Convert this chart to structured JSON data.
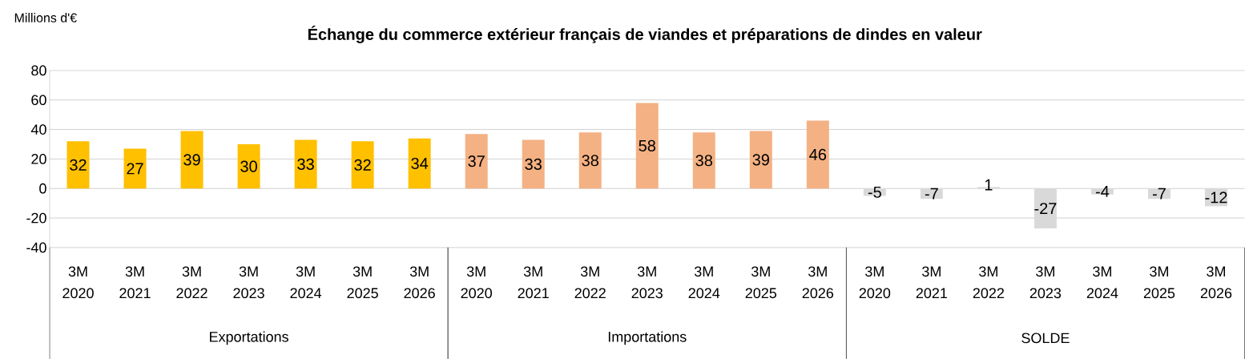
{
  "chart_data": {
    "type": "bar",
    "title": "Échange du commerce extérieur français de viandes et préparations de dindes en valeur",
    "ylabel": "Millions d'€",
    "categories": [
      "3M 2020",
      "3M 2021",
      "3M 2022",
      "3M 2023",
      "3M 2024",
      "3M 2025",
      "3M 2026",
      "3M 2020",
      "3M 2021",
      "3M 2022",
      "3M 2023",
      "3M 2024",
      "3M 2025",
      "3M 2026",
      "3M 2020",
      "3M 2021",
      "3M 2022",
      "3M 2023",
      "3M 2024",
      "3M 2025",
      "3M 2026"
    ],
    "series": [
      {
        "color": "#ffc000",
        "values": [
          32,
          27,
          39,
          30,
          33,
          32,
          34,
          null,
          null,
          null,
          null,
          null,
          null,
          null,
          null,
          null,
          null,
          null,
          null,
          null,
          null
        ]
      },
      {
        "color": "#f4b183",
        "values": [
          null,
          null,
          null,
          null,
          null,
          null,
          null,
          37,
          33,
          38,
          58,
          38,
          39,
          46,
          null,
          null,
          null,
          null,
          null,
          null,
          null
        ]
      },
      {
        "color": "#d9d9d9",
        "values": [
          null,
          null,
          null,
          null,
          null,
          null,
          null,
          null,
          null,
          null,
          null,
          null,
          null,
          null,
          -5,
          -7,
          1,
          -27,
          -4,
          -7,
          -12
        ]
      }
    ],
    "ylim": [
      -40,
      80
    ],
    "yticks": [
      -40,
      -20,
      0,
      20,
      40,
      60,
      80
    ],
    "grid": "y",
    "data_labels": true,
    "annotations": [
      "Exportations",
      "Importations",
      "SOLDE"
    ]
  }
}
